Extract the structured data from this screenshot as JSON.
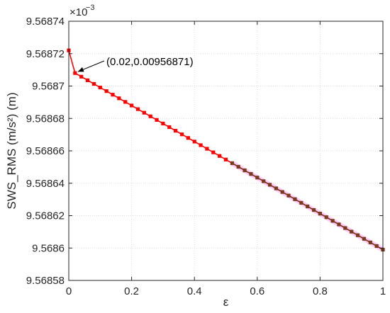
{
  "chart_data": {
    "type": "line",
    "xlabel": "ε",
    "ylabel": "SWS_RMS (m/s²) (m)",
    "y_exponent_base": "×10",
    "y_exponent_power": "−3",
    "xlim": [
      0,
      1
    ],
    "ylim": [
      9.56858,
      9.56874
    ],
    "xticks": [
      0,
      0.2,
      0.4,
      0.6,
      0.8,
      1
    ],
    "xtick_labels": [
      "0",
      "0.2",
      "0.4",
      "0.6",
      "0.8",
      "1"
    ],
    "yticks": [
      9.56858,
      9.5686,
      9.56862,
      9.56864,
      9.56866,
      9.56868,
      9.5687,
      9.56872,
      9.56874
    ],
    "ytick_labels": [
      "9.56858",
      "9.5686",
      "9.56862",
      "9.56864",
      "9.56866",
      "9.56868",
      "9.5687",
      "9.56872",
      "9.56874"
    ],
    "grid": true,
    "annotation": {
      "text": "(0.02,0.00956871)",
      "x": 0.02,
      "y": 9.568708
    },
    "series": [
      {
        "color": "#ff0000",
        "overlay_color": "#7a3b18",
        "overlay_highlight": "#ff66ff",
        "overlay_from_x": 0.52,
        "x_start": 0,
        "x_end": 1,
        "x_step": 0.02,
        "y_first": 9.568722,
        "y_second": 9.568708,
        "y_last": 9.568599
      }
    ]
  }
}
